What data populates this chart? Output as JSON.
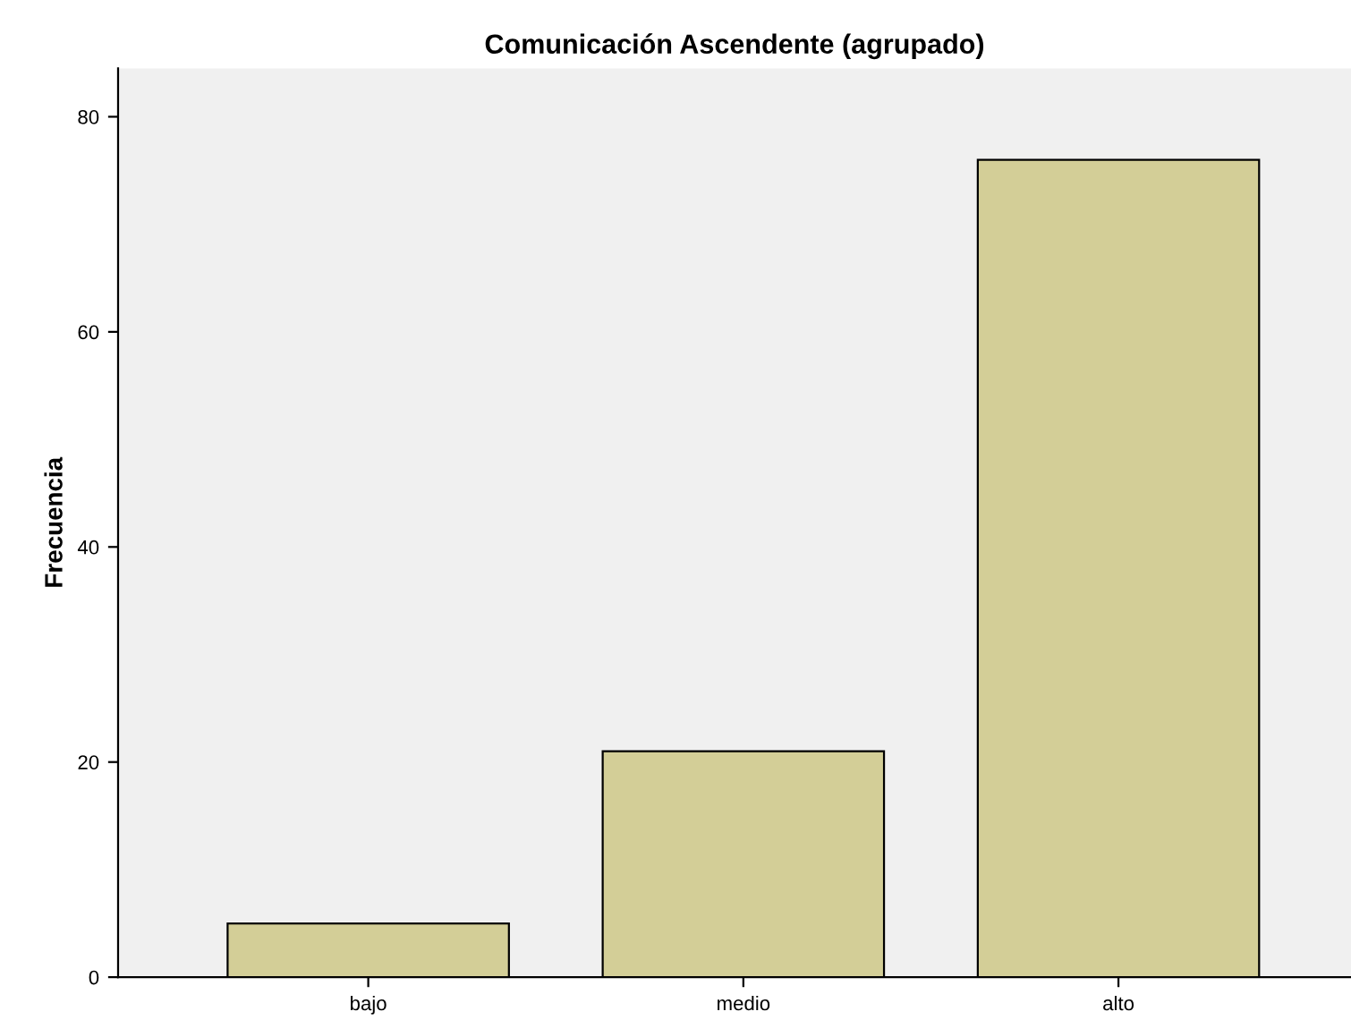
{
  "chart_data": {
    "type": "bar",
    "title": "Comunicación Ascendente (agrupado)",
    "ylabel": "Frecuencia",
    "categories": [
      "bajo",
      "medio",
      "alto"
    ],
    "values": [
      5,
      21,
      76
    ],
    "color": "#d3ce97",
    "ylim": [
      0,
      84.5
    ],
    "yticks": [
      0,
      20,
      40,
      60,
      80
    ],
    "grid": false,
    "legend": false
  }
}
